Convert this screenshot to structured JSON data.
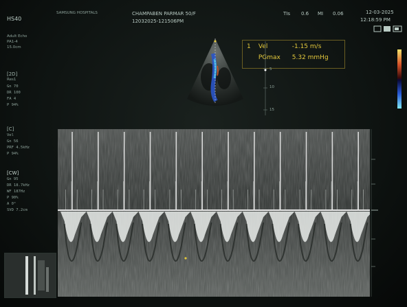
{
  "header": {
    "model": "HS40",
    "hospital": "SAMSUNG HOSPITALS",
    "patient_name": "CHAMPABEN PARMAR 50/F",
    "study_id": "12032025-121506PM",
    "ti": "TIs",
    "ti_val": "0.6",
    "mi": "MI",
    "mi_val": "0.06",
    "date": "12-03-2025",
    "time": "12:18:59 PM"
  },
  "probe": {
    "line1": "Adult Echo",
    "line2": "PA1-4",
    "line3": "15.0cm"
  },
  "panel_2d": {
    "title": "[2D]",
    "freq": "Res1",
    "rows": [
      "Gn   70",
      "DR   100",
      "FA   4",
      "P    94%"
    ]
  },
  "panel_c": {
    "title": "[C]",
    "rows": [
      "Vel",
      "Gn   56",
      "PRF  4.5kHz",
      "P    94%"
    ]
  },
  "panel_cw": {
    "title": "[CW]",
    "rows": [
      "Gn   95",
      "DR   18.7kHz",
      "WF   187Hz",
      "P    90%",
      "A    0°",
      "SVD  7.2cm"
    ]
  },
  "measurement": {
    "index": "1",
    "vel_label": "Vel",
    "vel_value": "-1.15 m/s",
    "pg_label": "PGmax",
    "pg_value": "5.32 mmHg"
  },
  "scale_labels": [
    "5",
    "10",
    "15"
  ],
  "doppler": {
    "beats": 12
  }
}
